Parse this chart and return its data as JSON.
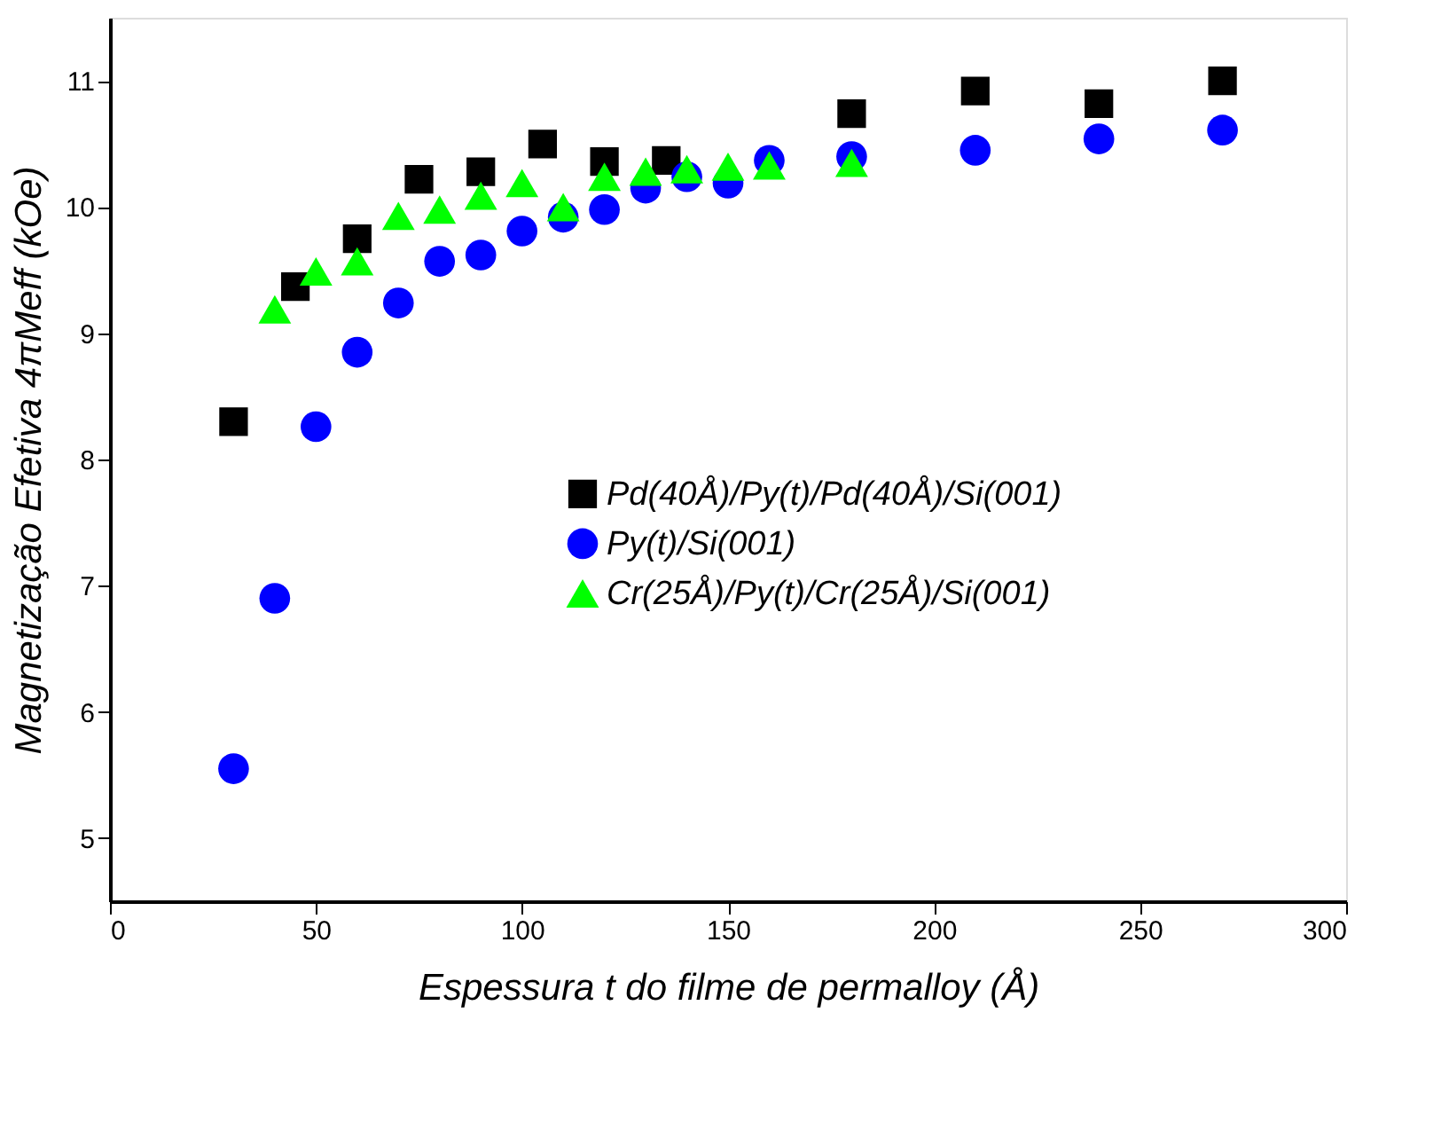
{
  "chart_data": {
    "type": "scatter",
    "xlabel": "Espessura t do filme de permalloy (Å)",
    "ylabel": "Magnetização Efetiva 4πMeff (kOe)",
    "xlim": [
      0,
      300
    ],
    "xticks": [
      0,
      50,
      100,
      150,
      200,
      250,
      300
    ],
    "ylim": [
      4.5,
      11.5
    ],
    "yticks": [
      5,
      6,
      7,
      8,
      9,
      10,
      11
    ],
    "grid": false,
    "legend": "right",
    "series": [
      {
        "name": "Pd(40Å)/Py(t)/Pd(40Å)/Si(001)",
        "color": "#000000",
        "marker": "square",
        "x": [
          30,
          45,
          60,
          75,
          90,
          105,
          120,
          135,
          180,
          210,
          240,
          270
        ],
        "values": [
          8.3,
          9.37,
          9.75,
          10.22,
          10.28,
          10.5,
          10.36,
          10.37,
          10.74,
          10.92,
          10.82,
          11.0
        ]
      },
      {
        "name": "Py(t)/Si(001)",
        "color": "#0000ff",
        "marker": "circle",
        "x": [
          30,
          40,
          50,
          60,
          70,
          80,
          90,
          100,
          110,
          120,
          130,
          140,
          150,
          160,
          180,
          210,
          240,
          270
        ],
        "values": [
          5.55,
          6.9,
          8.26,
          8.85,
          9.24,
          9.57,
          9.62,
          9.81,
          9.92,
          9.98,
          10.15,
          10.24,
          10.19,
          10.37,
          10.4,
          10.45,
          10.54,
          10.61
        ]
      },
      {
        "name": "Cr(25Å)/Py(t)/Cr(25Å)/Si(001)",
        "color": "#00ff00",
        "marker": "triangle",
        "x": [
          40,
          50,
          60,
          70,
          80,
          90,
          100,
          110,
          120,
          130,
          140,
          150,
          160,
          180
        ],
        "values": [
          9.19,
          9.49,
          9.57,
          9.93,
          9.98,
          10.09,
          10.19,
          10.0,
          10.24,
          10.28,
          10.3,
          10.32,
          10.33,
          10.35
        ]
      }
    ]
  }
}
